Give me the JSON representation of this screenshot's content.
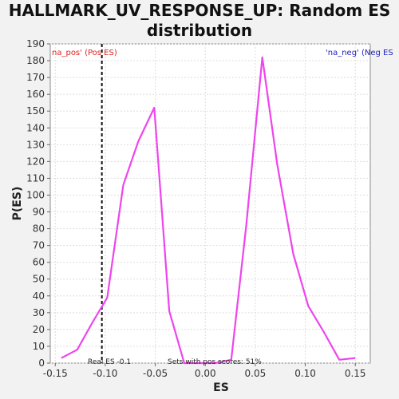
{
  "chart_data": {
    "type": "line",
    "title_line1": "HALLMARK_UV_RESPONSE_UP: Random ES",
    "title_line2": "distribution",
    "xlabel": "ES",
    "ylabel": "P(ES)",
    "xlim": [
      -0.155,
      0.165
    ],
    "ylim": [
      0,
      190
    ],
    "x_ticks": [
      -0.15,
      -0.1,
      -0.05,
      0.0,
      0.05,
      0.1,
      0.15
    ],
    "x_tick_labels": [
      "-0.15",
      "-0.10",
      "-0.05",
      "0.00",
      "0.05",
      "0.10",
      "0.15"
    ],
    "y_ticks": [
      0,
      10,
      20,
      30,
      40,
      50,
      60,
      70,
      80,
      90,
      100,
      110,
      120,
      130,
      140,
      150,
      160,
      170,
      180,
      190
    ],
    "grid": true,
    "series": [
      {
        "color": "#ee44ee",
        "x": [
          -0.144,
          -0.128,
          -0.113,
          -0.098,
          -0.082,
          -0.067,
          -0.051,
          -0.036,
          -0.021,
          -0.005,
          0.01,
          0.026,
          0.041,
          0.057,
          0.072,
          0.088,
          0.103,
          0.119,
          0.134,
          0.15
        ],
        "y": [
          3,
          8,
          24,
          39,
          106,
          132,
          152,
          31,
          0,
          0,
          0,
          2,
          82,
          182,
          118,
          65,
          34,
          18,
          2,
          3
        ]
      }
    ],
    "real_es": -0.1034,
    "real_es_color": "#111111",
    "annotations": {
      "pos_label": "na_pos' (Pos ES)",
      "pos_color": "#dd2222",
      "neg_label": "'na_neg' (Neg ES",
      "neg_color": "#2222bb",
      "real_es_label": "Real ES -0.1",
      "sets_label": "Sets with pos scores: 51%"
    }
  }
}
